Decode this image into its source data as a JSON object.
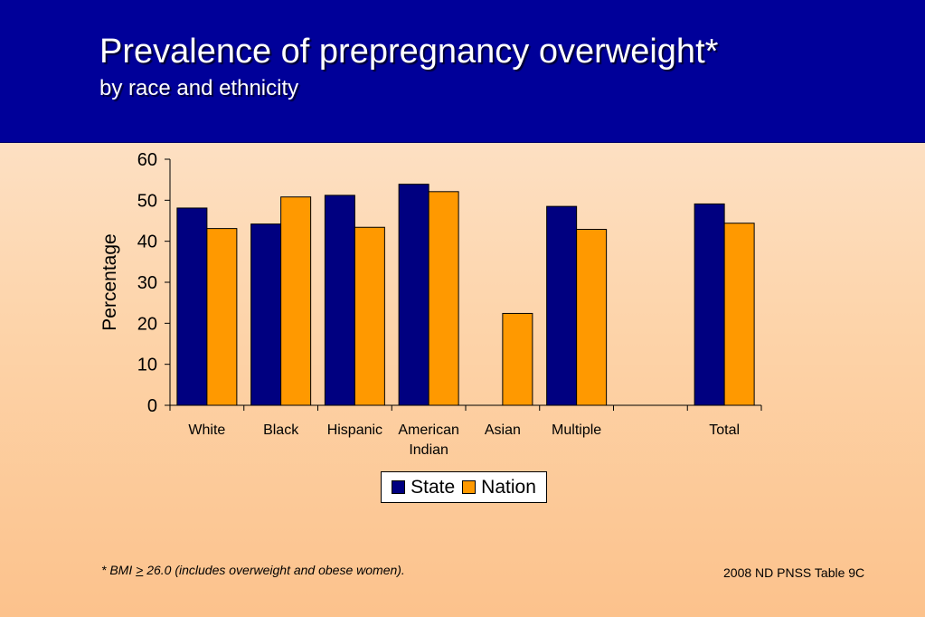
{
  "header": {
    "title": "Prevalence of prepregnancy overweight*",
    "subtitle": "by race and ethnicity"
  },
  "chart_data": {
    "type": "bar",
    "ylabel": "Percentage",
    "ylim": [
      0,
      60
    ],
    "yticks": [
      0,
      10,
      20,
      30,
      40,
      50,
      60
    ],
    "categories": [
      "White",
      "Black",
      "Hispanic",
      "American Indian",
      "Asian",
      "Multiple",
      "",
      "Total"
    ],
    "series": [
      {
        "name": "State",
        "color": "#000080",
        "values": [
          48.1,
          44.2,
          51.2,
          53.9,
          null,
          48.5,
          null,
          49.1
        ]
      },
      {
        "name": "Nation",
        "color": "#ff9900",
        "values": [
          43.1,
          50.8,
          43.4,
          52.1,
          22.4,
          42.9,
          null,
          44.4
        ]
      }
    ],
    "legend_position": "bottom-center",
    "grid": false
  },
  "legend": {
    "state_label": "State",
    "nation_label": "Nation"
  },
  "footnote": {
    "prefix": "*  BMI ",
    "symbol": ">",
    "rest": " 26.0 (includes overweight and obese women)."
  },
  "source": "2008 ND PNSS Table 9C"
}
